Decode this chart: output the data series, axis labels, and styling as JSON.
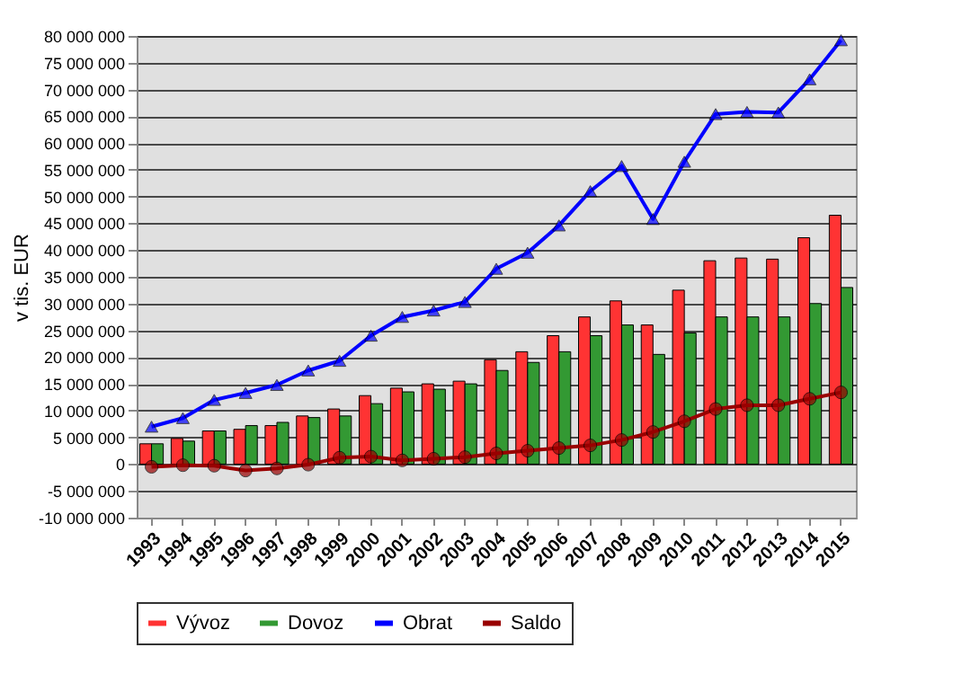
{
  "chart_data": {
    "type": "bar",
    "ylabel": "v tis. EUR",
    "categories": [
      "1993",
      "1994",
      "1995",
      "1996",
      "1997",
      "1998",
      "1999",
      "2000",
      "2001",
      "2002",
      "2003",
      "2004",
      "2005",
      "2006",
      "2007",
      "2008",
      "2009",
      "2010",
      "2011",
      "2012",
      "2013",
      "2014",
      "2015"
    ],
    "series": [
      {
        "name": "Vývoz",
        "color": "#ff3333",
        "values": [
          3800000,
          4800000,
          6200000,
          6500000,
          7200000,
          9000000,
          10300000,
          12800000,
          14200000,
          15000000,
          15500000,
          19500000,
          21000000,
          24000000,
          27500000,
          30500000,
          26000000,
          32500000,
          38000000,
          38500000,
          38300000,
          42300000,
          46500000
        ]
      },
      {
        "name": "Dovoz",
        "color": "#339933",
        "values": [
          3800000,
          4300000,
          6200000,
          7200000,
          7800000,
          8700000,
          9000000,
          11300000,
          13500000,
          14000000,
          15000000,
          17500000,
          19000000,
          21000000,
          24000000,
          26000000,
          20500000,
          24500000,
          27500000,
          27500000,
          27500000,
          30000000,
          33000000
        ]
      },
      {
        "name": "Obrat",
        "type": "line",
        "marker": "triangle",
        "color": "#0000ff",
        "values": [
          7000000,
          8600000,
          12000000,
          13300000,
          14800000,
          17500000,
          19300000,
          24000000,
          27500000,
          28700000,
          30300000,
          36500000,
          39500000,
          44600000,
          51000000,
          55700000,
          45800000,
          56500000,
          65400000,
          65800000,
          65700000,
          71900000,
          79200000
        ]
      },
      {
        "name": "Saldo",
        "type": "line",
        "marker": "circle",
        "color": "#990000",
        "values": [
          -500000,
          -200000,
          -300000,
          -1200000,
          -800000,
          -100000,
          1200000,
          1400000,
          700000,
          1000000,
          1300000,
          2000000,
          2500000,
          3000000,
          3500000,
          4500000,
          6000000,
          8000000,
          10300000,
          11000000,
          11000000,
          12200000,
          13400000
        ]
      }
    ],
    "ylim": [
      -10000000,
      80000000
    ],
    "yticks": [
      {
        "value": -10000000,
        "label": "-10 000 000"
      },
      {
        "value": -5000000,
        "label": "-5 000 000"
      },
      {
        "value": 0,
        "label": "0"
      },
      {
        "value": 5000000,
        "label": "5 000 000"
      },
      {
        "value": 10000000,
        "label": "10 000 000"
      },
      {
        "value": 15000000,
        "label": "15 000 000"
      },
      {
        "value": 20000000,
        "label": "20 000 000"
      },
      {
        "value": 25000000,
        "label": "25 000 000"
      },
      {
        "value": 30000000,
        "label": "30 000 000"
      },
      {
        "value": 35000000,
        "label": "35 000 000"
      },
      {
        "value": 40000000,
        "label": "40 000 000"
      },
      {
        "value": 45000000,
        "label": "45 000 000"
      },
      {
        "value": 50000000,
        "label": "50 000 000"
      },
      {
        "value": 55000000,
        "label": "55 000 000"
      },
      {
        "value": 60000000,
        "label": "60 000 000"
      },
      {
        "value": 65000000,
        "label": "65 000 000"
      },
      {
        "value": 70000000,
        "label": "70 000 000"
      },
      {
        "value": 75000000,
        "label": "75 000 000"
      },
      {
        "value": 80000000,
        "label": "80 000 000"
      }
    ],
    "grid": "y",
    "legend": "bottom"
  }
}
